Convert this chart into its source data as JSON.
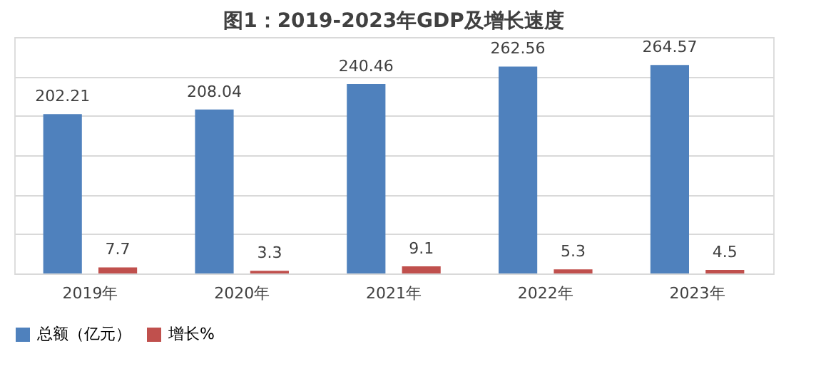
{
  "chart_data": {
    "type": "bar",
    "title": "图1：2019-2023年GDP及增长速度",
    "categories": [
      "2019年",
      "2020年",
      "2021年",
      "2022年",
      "2023年"
    ],
    "series": [
      {
        "name": "总额（亿元）",
        "color": "#4f81bd",
        "values": [
          202.21,
          208.04,
          240.46,
          262.56,
          264.57
        ]
      },
      {
        "name": "增长%",
        "color": "#c0504d",
        "values": [
          7.7,
          3.3,
          9.1,
          5.3,
          4.5
        ]
      }
    ],
    "ylim": [
      0,
      300
    ],
    "tick_labels": "x",
    "grid": "y",
    "legend": "bottom",
    "data_labels": true
  }
}
